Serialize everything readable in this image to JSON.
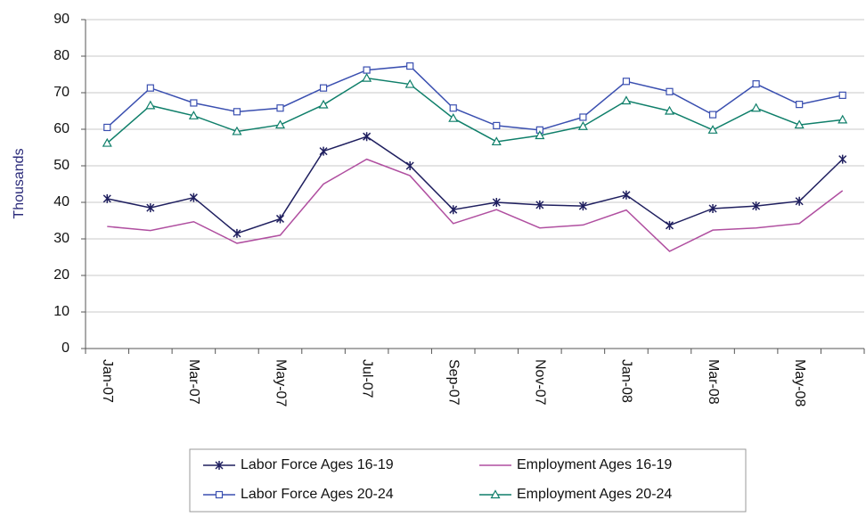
{
  "chart_data": {
    "type": "line",
    "y_label": "Thousands",
    "categories": [
      "Jan-07",
      null,
      "Mar-07",
      null,
      "May-07",
      null,
      "Jul-07",
      null,
      "Sep-07",
      null,
      "Nov-07",
      null,
      "Jan-08",
      null,
      "Mar-08",
      null,
      "May-08",
      null
    ],
    "ylim": [
      0,
      90
    ],
    "yticks": [
      0,
      10,
      20,
      30,
      40,
      50,
      60,
      70,
      80,
      90
    ],
    "grid": true,
    "series": [
      {
        "name": "Labor Force Ages 16-19",
        "color": "#1f1f5f",
        "marker": "star",
        "values": [
          41,
          38.5,
          41.3,
          31.5,
          35.5,
          54,
          58,
          50,
          38,
          40,
          39.3,
          39,
          42,
          33.7,
          38.3,
          39,
          40.3,
          51.8
        ]
      },
      {
        "name": "Employment Ages 16-19",
        "color": "#b04fa0",
        "marker": "none",
        "values": [
          33.4,
          32.3,
          34.7,
          28.8,
          31,
          45,
          51.8,
          47.3,
          34.2,
          38,
          33,
          33.8,
          37.9,
          26.6,
          32.4,
          33,
          34.2,
          43.2
        ]
      },
      {
        "name": "Labor Force Ages 20-24",
        "color": "#3a4fb0",
        "marker": "square",
        "values": [
          60.5,
          71.3,
          67.2,
          64.8,
          65.8,
          71.3,
          76.2,
          77.3,
          65.8,
          61,
          59.8,
          63.3,
          73.1,
          70.3,
          64,
          72.4,
          66.8,
          69.3
        ]
      },
      {
        "name": "Employment Ages 20-24",
        "color": "#0f7f6a",
        "marker": "triangle",
        "values": [
          56.2,
          66.5,
          63.7,
          59.4,
          61.2,
          66.7,
          74,
          72.3,
          63,
          56.6,
          58.3,
          60.8,
          67.8,
          65,
          59.8,
          65.8,
          61.2,
          62.6
        ]
      }
    ]
  }
}
